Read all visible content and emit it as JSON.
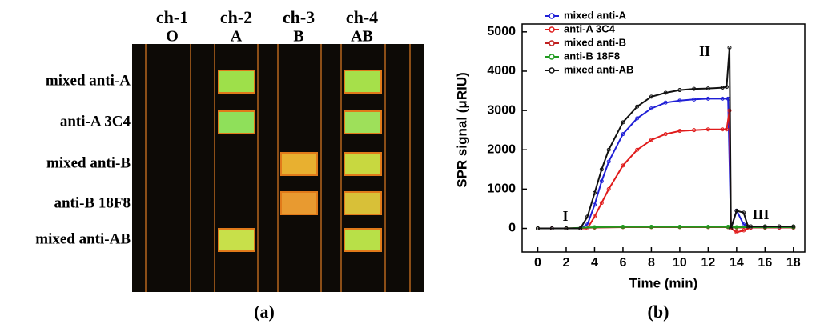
{
  "panel_a": {
    "columns": [
      {
        "name": "ch-1",
        "group": "O"
      },
      {
        "name": "ch-2",
        "group": "A"
      },
      {
        "name": "ch-3",
        "group": "B"
      },
      {
        "name": "ch-4",
        "group": "AB"
      }
    ],
    "rows": [
      "mixed anti-A",
      "anti-A 3C4",
      "mixed anti-B",
      "anti-B 18F8",
      "mixed anti-AB"
    ],
    "panel_label": "(a)"
  },
  "chart_data": {
    "type": "line",
    "panel_label": "(b)",
    "x_label": "Time (min)",
    "y_label": "SPR signal (μRIU)",
    "xlim": [
      -1.1,
      18.8
    ],
    "ylim": [
      -600,
      5200
    ],
    "xticks": [
      0,
      2,
      4,
      6,
      8,
      10,
      12,
      14,
      16,
      18
    ],
    "yticks": [
      0,
      1000,
      2000,
      3000,
      4000,
      5000
    ],
    "legend": "top-left",
    "annotations": [
      "I",
      "II",
      "III"
    ],
    "series": [
      {
        "name": "mixed anti-A",
        "color": "#1f1fd6",
        "x": [
          0,
          1,
          2,
          3,
          3.5,
          4,
          4.5,
          5,
          6,
          7,
          8,
          9,
          10,
          11,
          12,
          13,
          13.4,
          13.6,
          14,
          14.5,
          15,
          16,
          17,
          18
        ],
        "values": [
          0,
          0,
          0,
          0,
          100,
          600,
          1200,
          1700,
          2400,
          2800,
          3050,
          3200,
          3250,
          3280,
          3300,
          3300,
          3300,
          0,
          450,
          100,
          20,
          20,
          20,
          20
        ]
      },
      {
        "name": "anti-A 3C4",
        "color": "#e01b1b",
        "x": [
          0,
          1,
          2,
          3,
          3.5,
          4,
          4.5,
          5,
          6,
          7,
          8,
          9,
          10,
          11,
          12,
          13,
          13.3,
          13.5,
          13.6,
          14,
          14.5,
          15,
          16,
          17,
          18
        ],
        "values": [
          0,
          0,
          0,
          0,
          0,
          300,
          650,
          1000,
          1600,
          2000,
          2250,
          2400,
          2480,
          2500,
          2520,
          2520,
          2520,
          3000,
          0,
          -100,
          -50,
          20,
          20,
          20,
          20
        ]
      },
      {
        "name": "mixed anti-B",
        "color": "#c02020",
        "x": [
          0,
          2,
          4,
          6,
          8,
          10,
          12,
          13.4,
          14,
          16,
          18
        ],
        "values": [
          0,
          0,
          20,
          30,
          30,
          30,
          30,
          30,
          20,
          20,
          20
        ]
      },
      {
        "name": "anti-B 18F8",
        "color": "#1f9a1f",
        "x": [
          0,
          2,
          4,
          6,
          8,
          10,
          12,
          13.4,
          14,
          16,
          18
        ],
        "values": [
          0,
          0,
          30,
          40,
          40,
          40,
          40,
          40,
          30,
          30,
          30
        ]
      },
      {
        "name": "mixed anti-AB",
        "color": "#111111",
        "x": [
          0,
          1,
          2,
          3,
          3.5,
          4,
          4.5,
          5,
          6,
          7,
          8,
          9,
          10,
          11,
          12,
          13,
          13.3,
          13.5,
          13.6,
          14,
          14.5,
          14.8,
          15,
          16,
          17,
          18
        ],
        "values": [
          0,
          0,
          0,
          0,
          300,
          900,
          1500,
          2000,
          2700,
          3100,
          3350,
          3450,
          3520,
          3550,
          3560,
          3580,
          3600,
          4600,
          0,
          450,
          400,
          50,
          50,
          50,
          50,
          50
        ]
      }
    ]
  }
}
